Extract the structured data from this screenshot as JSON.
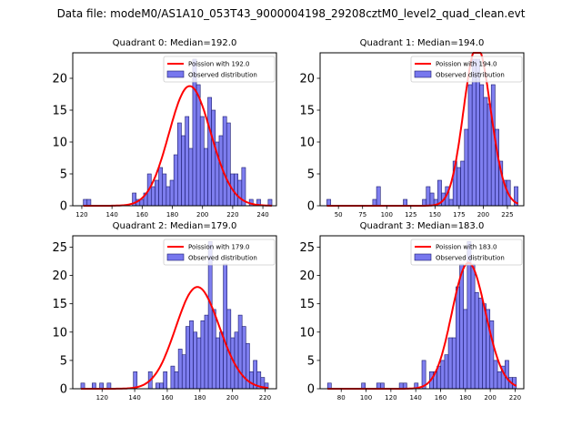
{
  "suptitle": "Data file: modeM0/AS1A10_053T43_9000004198_29208cztM0_level2_quad_clean.evt",
  "chart_data": [
    {
      "type": "bar",
      "title": "Quadrant 0: Median=192.0",
      "median": 192.0,
      "xlim": [
        114,
        249
      ],
      "ylim": [
        0,
        24
      ],
      "xticks": [
        120,
        140,
        160,
        180,
        200,
        220,
        240
      ],
      "yticks": [
        0,
        5,
        10,
        15,
        20
      ],
      "bin_start": 121,
      "bin_width": 2.5,
      "counts": [
        1,
        1,
        0,
        0,
        0,
        0,
        0,
        0,
        0,
        0,
        0,
        0,
        0,
        2,
        1,
        1,
        2,
        5,
        3,
        4,
        6,
        5,
        3,
        4,
        8,
        13,
        11,
        14,
        9,
        23,
        19,
        14,
        9,
        17,
        15,
        10,
        11,
        14,
        13,
        5,
        5,
        4,
        6,
        0,
        1,
        0,
        1,
        0,
        0,
        1
      ],
      "poisson_mean": 192.0,
      "legend": [
        "Poission with 192.0",
        "Observed distribution"
      ],
      "legend_position": "top-right"
    },
    {
      "type": "bar",
      "title": "Quadrant 1: Median=194.0",
      "median": 194.0,
      "xlim": [
        31,
        242
      ],
      "ylim": [
        0,
        24
      ],
      "xticks": [
        50,
        75,
        100,
        125,
        150,
        175,
        200,
        225
      ],
      "yticks": [
        0,
        5,
        10,
        15,
        20
      ],
      "bin_start": 38,
      "bin_width": 3.96,
      "counts": [
        1,
        0,
        0,
        0,
        0,
        0,
        0,
        0,
        0,
        0,
        0,
        0,
        1,
        3,
        0,
        0,
        0,
        0,
        0,
        0,
        1,
        0,
        0,
        0,
        0,
        1,
        3,
        2,
        1,
        4,
        2,
        3,
        1,
        7,
        6,
        7,
        12,
        19,
        23,
        23,
        19,
        17,
        16,
        19,
        12,
        7,
        4,
        4,
        0,
        3
      ],
      "poisson_mean": 194.0,
      "legend": [
        "Poission with 194.0",
        "Observed distribution"
      ],
      "legend_position": "top-right"
    },
    {
      "type": "bar",
      "title": "Quadrant 2: Median=179.0",
      "median": 179.0,
      "xlim": [
        102,
        227
      ],
      "ylim": [
        0,
        27
      ],
      "xticks": [
        120,
        140,
        160,
        180,
        200,
        220
      ],
      "yticks": [
        0,
        5,
        10,
        15,
        20,
        25
      ],
      "bin_start": 107,
      "bin_width": 2.3,
      "counts": [
        1,
        0,
        0,
        1,
        0,
        1,
        0,
        1,
        0,
        0,
        0,
        0,
        0,
        0,
        3,
        0,
        0,
        0,
        3,
        0,
        1,
        1,
        3,
        0,
        4,
        3,
        7,
        6,
        11,
        12,
        10,
        9,
        12,
        13,
        26,
        14,
        9,
        10,
        22,
        14,
        9,
        10,
        13,
        11,
        8,
        3,
        5,
        3,
        2,
        1
      ],
      "poisson_mean": 179.0,
      "legend": [
        "Poission with 179.0",
        "Observed distribution"
      ],
      "legend_position": "top-right"
    },
    {
      "type": "bar",
      "title": "Quadrant 3: Median=183.0",
      "median": 183.0,
      "xlim": [
        63,
        227
      ],
      "ylim": [
        0,
        27
      ],
      "xticks": [
        80,
        100,
        120,
        140,
        160,
        180,
        200,
        220
      ],
      "yticks": [
        0,
        5,
        10,
        15,
        20,
        25
      ],
      "bin_start": 69,
      "bin_width": 3.04,
      "counts": [
        1,
        0,
        0,
        0,
        0,
        0,
        0,
        0,
        0,
        1,
        0,
        0,
        0,
        1,
        1,
        0,
        0,
        0,
        0,
        1,
        1,
        0,
        0,
        1,
        0,
        5,
        0,
        3,
        3,
        4,
        5,
        6,
        9,
        9,
        18,
        22,
        14,
        26,
        22,
        17,
        16,
        15,
        14,
        12,
        5,
        3,
        4,
        5,
        2,
        2
      ],
      "poisson_mean": 183.0,
      "legend": [
        "Poission with 183.0",
        "Observed distribution"
      ],
      "legend_position": "top-right"
    }
  ],
  "colors": {
    "bar_fill": "#7777ee",
    "bar_edge": "#1a1a6e",
    "poisson_line": "#ff0000"
  }
}
